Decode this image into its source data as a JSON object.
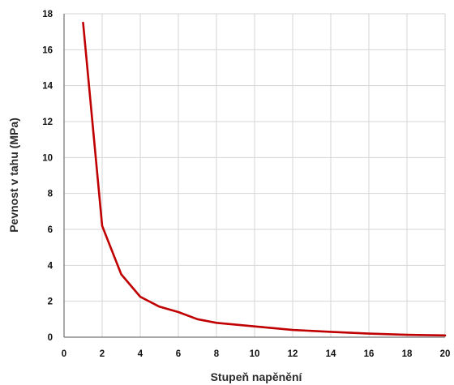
{
  "chart_data": {
    "type": "line",
    "title": "",
    "xlabel": "Stupeň napěnění",
    "ylabel": "Pevnost v tahu (MPa)",
    "xlim": [
      0,
      20
    ],
    "ylim": [
      0,
      18
    ],
    "x_ticks": [
      0,
      2,
      4,
      6,
      8,
      10,
      12,
      14,
      16,
      18,
      20
    ],
    "y_ticks": [
      0,
      2,
      4,
      6,
      8,
      10,
      12,
      14,
      16,
      18
    ],
    "grid": true,
    "legend": "none",
    "series": [
      {
        "color": "#c00000",
        "x": [
          1,
          2,
          3,
          4,
          5,
          6,
          7,
          8,
          10,
          12,
          14,
          16,
          18,
          20
        ],
        "y": [
          17.5,
          6.2,
          3.5,
          2.25,
          1.7,
          1.4,
          1.0,
          0.8,
          0.6,
          0.4,
          0.3,
          0.2,
          0.13,
          0.1
        ]
      }
    ]
  }
}
